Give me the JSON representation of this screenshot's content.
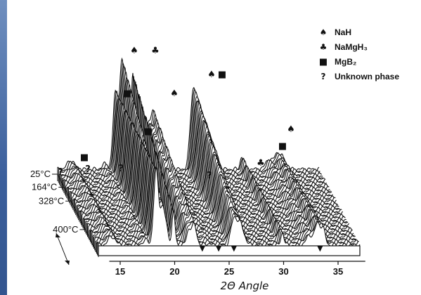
{
  "chart_data": {
    "type": "line",
    "title": "",
    "xlabel": "2Θ Angle",
    "ylabel": "",
    "xlim": [
      13,
      37
    ],
    "x_ticks": [
      "15",
      "20",
      "25",
      "30",
      "35"
    ],
    "x_tick_values": [
      15,
      20,
      25,
      30,
      35
    ],
    "temperature_labels": [
      "25°C",
      "164°C",
      "328°C",
      "400°C"
    ],
    "legend": [
      {
        "symbol": "♠",
        "label": "NaH",
        "icon": "spade-icon"
      },
      {
        "symbol": "♣",
        "label": "NaMgH₃",
        "icon": "club-icon"
      },
      {
        "symbol": "■",
        "label": "MgB₂",
        "icon": "square-icon"
      },
      {
        "symbol": "?",
        "label": "Unknown phase",
        "icon": "question-icon"
      }
    ],
    "series": [
      {
        "label": "NaH",
        "symbol": "♠",
        "positions": [
          18.2,
          21.2,
          25.4,
          32.9
        ]
      },
      {
        "label": "NaMgH₃",
        "symbol": "♣",
        "positions": [
          19.6,
          29.9
        ]
      },
      {
        "label": "MgB₂",
        "symbol": "■",
        "positions": [
          14.1,
          18.0,
          19.2,
          25.7,
          32.2
        ]
      },
      {
        "label": "Unknown phase",
        "symbol": "?",
        "positions": [
          13.9,
          17.2,
          22.9
        ]
      }
    ],
    "new_phase_markers": {
      "symbol": "▼",
      "positions": [
        22.8,
        24.3,
        25.7,
        33.6
      ]
    },
    "peaks": [
      {
        "x": 14.0,
        "h": 0.05,
        "w": 0.25
      },
      {
        "x": 14.4,
        "h": 0.06,
        "w": 0.25
      },
      {
        "x": 17.3,
        "h": 0.05,
        "w": 0.25
      },
      {
        "x": 18.3,
        "h": 0.72,
        "w": 0.22
      },
      {
        "x": 18.9,
        "h": 1.0,
        "w": 0.22
      },
      {
        "x": 19.3,
        "h": 0.3,
        "w": 0.2
      },
      {
        "x": 19.9,
        "h": 0.92,
        "w": 0.14
      },
      {
        "x": 21.3,
        "h": 0.42,
        "w": 0.2
      },
      {
        "x": 21.8,
        "h": 0.55,
        "w": 0.22
      },
      {
        "x": 23.0,
        "h": 0.05,
        "w": 0.25
      },
      {
        "x": 25.4,
        "h": 0.62,
        "w": 0.25
      },
      {
        "x": 26.0,
        "h": 0.6,
        "w": 0.35
      },
      {
        "x": 29.9,
        "h": 0.12,
        "w": 0.15
      },
      {
        "x": 32.4,
        "h": 0.1,
        "w": 0.3
      },
      {
        "x": 33.1,
        "h": 0.2,
        "w": 0.22
      },
      {
        "x": 33.6,
        "h": 0.16,
        "w": 0.22
      }
    ],
    "grid": false
  }
}
